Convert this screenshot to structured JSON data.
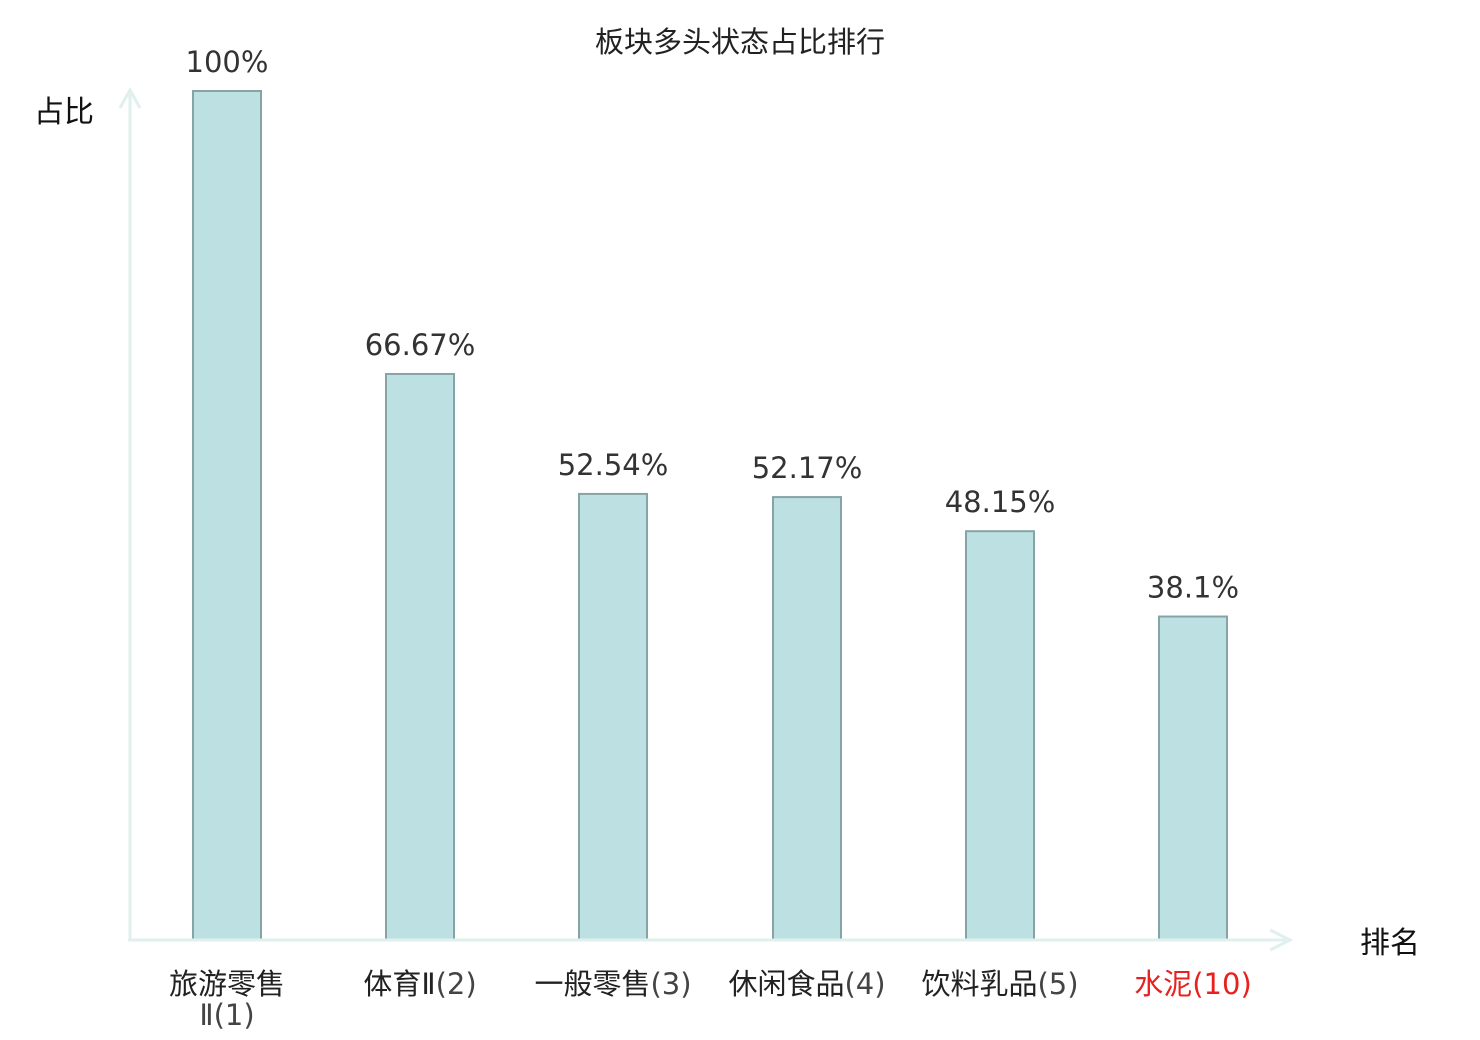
{
  "chart_data": {
    "type": "bar",
    "title": "板块多头状态占比排行",
    "xlabel": "排名",
    "ylabel": "占比",
    "ylim": [
      0,
      100
    ],
    "grid": false,
    "categories": [
      {
        "name": "旅游零售Ⅱ",
        "rank": "(1)",
        "highlight": false
      },
      {
        "name": "体育Ⅱ",
        "rank": "(2)",
        "highlight": false
      },
      {
        "name": "一般零售",
        "rank": "(3)",
        "highlight": false
      },
      {
        "name": "休闲食品",
        "rank": "(4)",
        "highlight": false
      },
      {
        "name": "饮料乳品",
        "rank": "(5)",
        "highlight": false
      },
      {
        "name": "水泥",
        "rank": "(10)",
        "highlight": true
      }
    ],
    "values": [
      100,
      66.67,
      52.54,
      52.17,
      48.15,
      38.1
    ],
    "value_labels": [
      "100%",
      "66.67%",
      "52.54%",
      "52.17%",
      "48.15%",
      "38.1%"
    ]
  },
  "colors": {
    "bar_fill": "#bde0e2",
    "bar_stroke": "#86a4a6",
    "axis": "#e0f0ee",
    "highlight_text": "#e8201e",
    "normal_text": "#222222",
    "rank_text": "#444444"
  }
}
